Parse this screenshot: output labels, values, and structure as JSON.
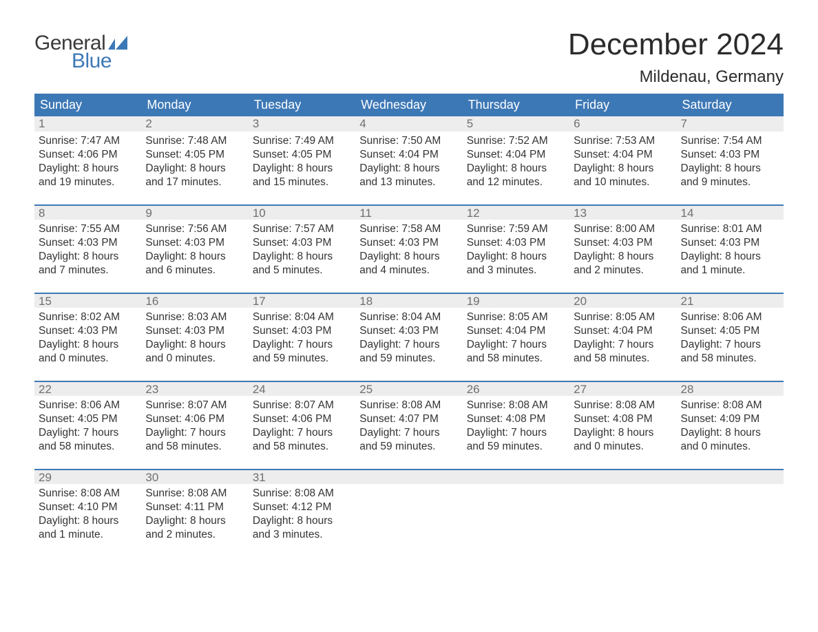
{
  "brand": {
    "word1": "General",
    "word2": "Blue",
    "color_word1": "#3a3a3a",
    "color_word2": "#3d78b6",
    "flag_color": "#3d78b6"
  },
  "title": "December 2024",
  "location": "Mildenau, Germany",
  "colors": {
    "header_bg": "#3d78b6",
    "header_text": "#ffffff",
    "daynum_bg": "#ededed",
    "daynum_text": "#6f6f6f",
    "rule": "#3d78b6",
    "body_text": "#333333",
    "page_bg": "#ffffff"
  },
  "typography": {
    "title_fontsize": 44,
    "location_fontsize": 24,
    "dow_fontsize": 18,
    "daynum_fontsize": 17,
    "body_fontsize": 15.5,
    "font_family": "Arial"
  },
  "days_of_week": [
    "Sunday",
    "Monday",
    "Tuesday",
    "Wednesday",
    "Thursday",
    "Friday",
    "Saturday"
  ],
  "labels": {
    "sunrise": "Sunrise:",
    "sunset": "Sunset:",
    "daylight": "Daylight:"
  },
  "weeks": [
    [
      {
        "n": "1",
        "sunrise": "7:47 AM",
        "sunset": "4:06 PM",
        "dl1": "8 hours",
        "dl2": "and 19 minutes."
      },
      {
        "n": "2",
        "sunrise": "7:48 AM",
        "sunset": "4:05 PM",
        "dl1": "8 hours",
        "dl2": "and 17 minutes."
      },
      {
        "n": "3",
        "sunrise": "7:49 AM",
        "sunset": "4:05 PM",
        "dl1": "8 hours",
        "dl2": "and 15 minutes."
      },
      {
        "n": "4",
        "sunrise": "7:50 AM",
        "sunset": "4:04 PM",
        "dl1": "8 hours",
        "dl2": "and 13 minutes."
      },
      {
        "n": "5",
        "sunrise": "7:52 AM",
        "sunset": "4:04 PM",
        "dl1": "8 hours",
        "dl2": "and 12 minutes."
      },
      {
        "n": "6",
        "sunrise": "7:53 AM",
        "sunset": "4:04 PM",
        "dl1": "8 hours",
        "dl2": "and 10 minutes."
      },
      {
        "n": "7",
        "sunrise": "7:54 AM",
        "sunset": "4:03 PM",
        "dl1": "8 hours",
        "dl2": "and 9 minutes."
      }
    ],
    [
      {
        "n": "8",
        "sunrise": "7:55 AM",
        "sunset": "4:03 PM",
        "dl1": "8 hours",
        "dl2": "and 7 minutes."
      },
      {
        "n": "9",
        "sunrise": "7:56 AM",
        "sunset": "4:03 PM",
        "dl1": "8 hours",
        "dl2": "and 6 minutes."
      },
      {
        "n": "10",
        "sunrise": "7:57 AM",
        "sunset": "4:03 PM",
        "dl1": "8 hours",
        "dl2": "and 5 minutes."
      },
      {
        "n": "11",
        "sunrise": "7:58 AM",
        "sunset": "4:03 PM",
        "dl1": "8 hours",
        "dl2": "and 4 minutes."
      },
      {
        "n": "12",
        "sunrise": "7:59 AM",
        "sunset": "4:03 PM",
        "dl1": "8 hours",
        "dl2": "and 3 minutes."
      },
      {
        "n": "13",
        "sunrise": "8:00 AM",
        "sunset": "4:03 PM",
        "dl1": "8 hours",
        "dl2": "and 2 minutes."
      },
      {
        "n": "14",
        "sunrise": "8:01 AM",
        "sunset": "4:03 PM",
        "dl1": "8 hours",
        "dl2": "and 1 minute."
      }
    ],
    [
      {
        "n": "15",
        "sunrise": "8:02 AM",
        "sunset": "4:03 PM",
        "dl1": "8 hours",
        "dl2": "and 0 minutes."
      },
      {
        "n": "16",
        "sunrise": "8:03 AM",
        "sunset": "4:03 PM",
        "dl1": "8 hours",
        "dl2": "and 0 minutes."
      },
      {
        "n": "17",
        "sunrise": "8:04 AM",
        "sunset": "4:03 PM",
        "dl1": "7 hours",
        "dl2": "and 59 minutes."
      },
      {
        "n": "18",
        "sunrise": "8:04 AM",
        "sunset": "4:03 PM",
        "dl1": "7 hours",
        "dl2": "and 59 minutes."
      },
      {
        "n": "19",
        "sunrise": "8:05 AM",
        "sunset": "4:04 PM",
        "dl1": "7 hours",
        "dl2": "and 58 minutes."
      },
      {
        "n": "20",
        "sunrise": "8:05 AM",
        "sunset": "4:04 PM",
        "dl1": "7 hours",
        "dl2": "and 58 minutes."
      },
      {
        "n": "21",
        "sunrise": "8:06 AM",
        "sunset": "4:05 PM",
        "dl1": "7 hours",
        "dl2": "and 58 minutes."
      }
    ],
    [
      {
        "n": "22",
        "sunrise": "8:06 AM",
        "sunset": "4:05 PM",
        "dl1": "7 hours",
        "dl2": "and 58 minutes."
      },
      {
        "n": "23",
        "sunrise": "8:07 AM",
        "sunset": "4:06 PM",
        "dl1": "7 hours",
        "dl2": "and 58 minutes."
      },
      {
        "n": "24",
        "sunrise": "8:07 AM",
        "sunset": "4:06 PM",
        "dl1": "7 hours",
        "dl2": "and 58 minutes."
      },
      {
        "n": "25",
        "sunrise": "8:08 AM",
        "sunset": "4:07 PM",
        "dl1": "7 hours",
        "dl2": "and 59 minutes."
      },
      {
        "n": "26",
        "sunrise": "8:08 AM",
        "sunset": "4:08 PM",
        "dl1": "7 hours",
        "dl2": "and 59 minutes."
      },
      {
        "n": "27",
        "sunrise": "8:08 AM",
        "sunset": "4:08 PM",
        "dl1": "8 hours",
        "dl2": "and 0 minutes."
      },
      {
        "n": "28",
        "sunrise": "8:08 AM",
        "sunset": "4:09 PM",
        "dl1": "8 hours",
        "dl2": "and 0 minutes."
      }
    ],
    [
      {
        "n": "29",
        "sunrise": "8:08 AM",
        "sunset": "4:10 PM",
        "dl1": "8 hours",
        "dl2": "and 1 minute."
      },
      {
        "n": "30",
        "sunrise": "8:08 AM",
        "sunset": "4:11 PM",
        "dl1": "8 hours",
        "dl2": "and 2 minutes."
      },
      {
        "n": "31",
        "sunrise": "8:08 AM",
        "sunset": "4:12 PM",
        "dl1": "8 hours",
        "dl2": "and 3 minutes."
      },
      null,
      null,
      null,
      null
    ]
  ]
}
